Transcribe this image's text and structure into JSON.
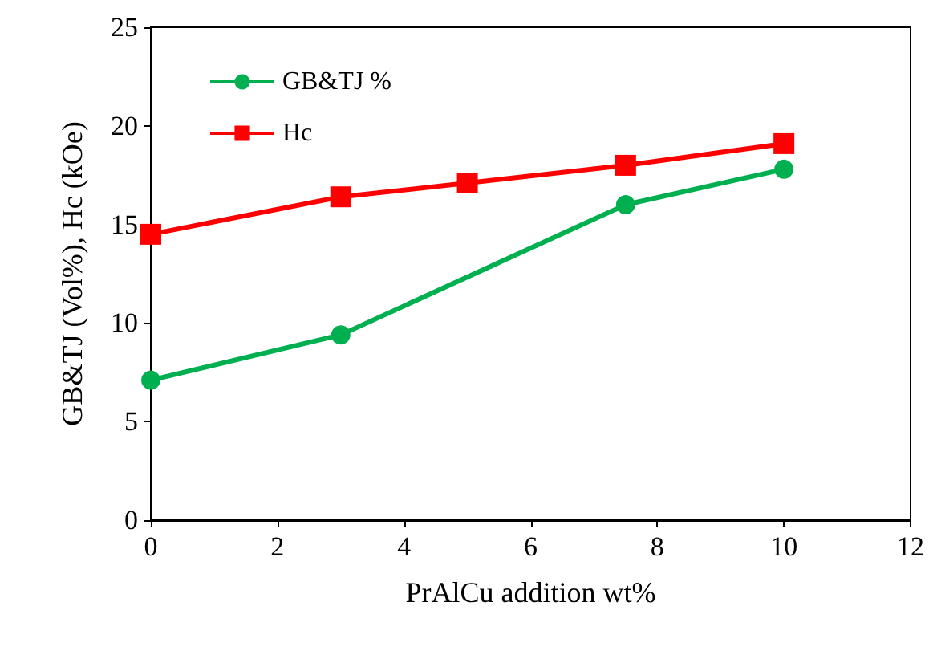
{
  "chart_data": {
    "type": "line",
    "xlabel": "PrAlCu addition wt%",
    "ylabel": "GB&TJ (Vol%), Hc (kOe)",
    "xlim": [
      0,
      12
    ],
    "xticks": [
      0,
      2,
      4,
      6,
      8,
      10,
      12
    ],
    "ylim": [
      0,
      25
    ],
    "yticks": [
      0,
      5,
      10,
      15,
      20,
      25
    ],
    "grid": false,
    "legend": "top left",
    "series": [
      {
        "name": "GB&TJ %",
        "color": "#00b050",
        "marker": "circle",
        "x": [
          0,
          3,
          7.5,
          10
        ],
        "values": [
          7.1,
          9.4,
          16,
          17.8
        ]
      },
      {
        "name": "Hc",
        "color": "#ff0000",
        "marker": "square",
        "x": [
          0,
          3,
          5,
          7.5,
          10
        ],
        "values": [
          14.5,
          16.4,
          17.1,
          18,
          19.1
        ]
      }
    ]
  }
}
